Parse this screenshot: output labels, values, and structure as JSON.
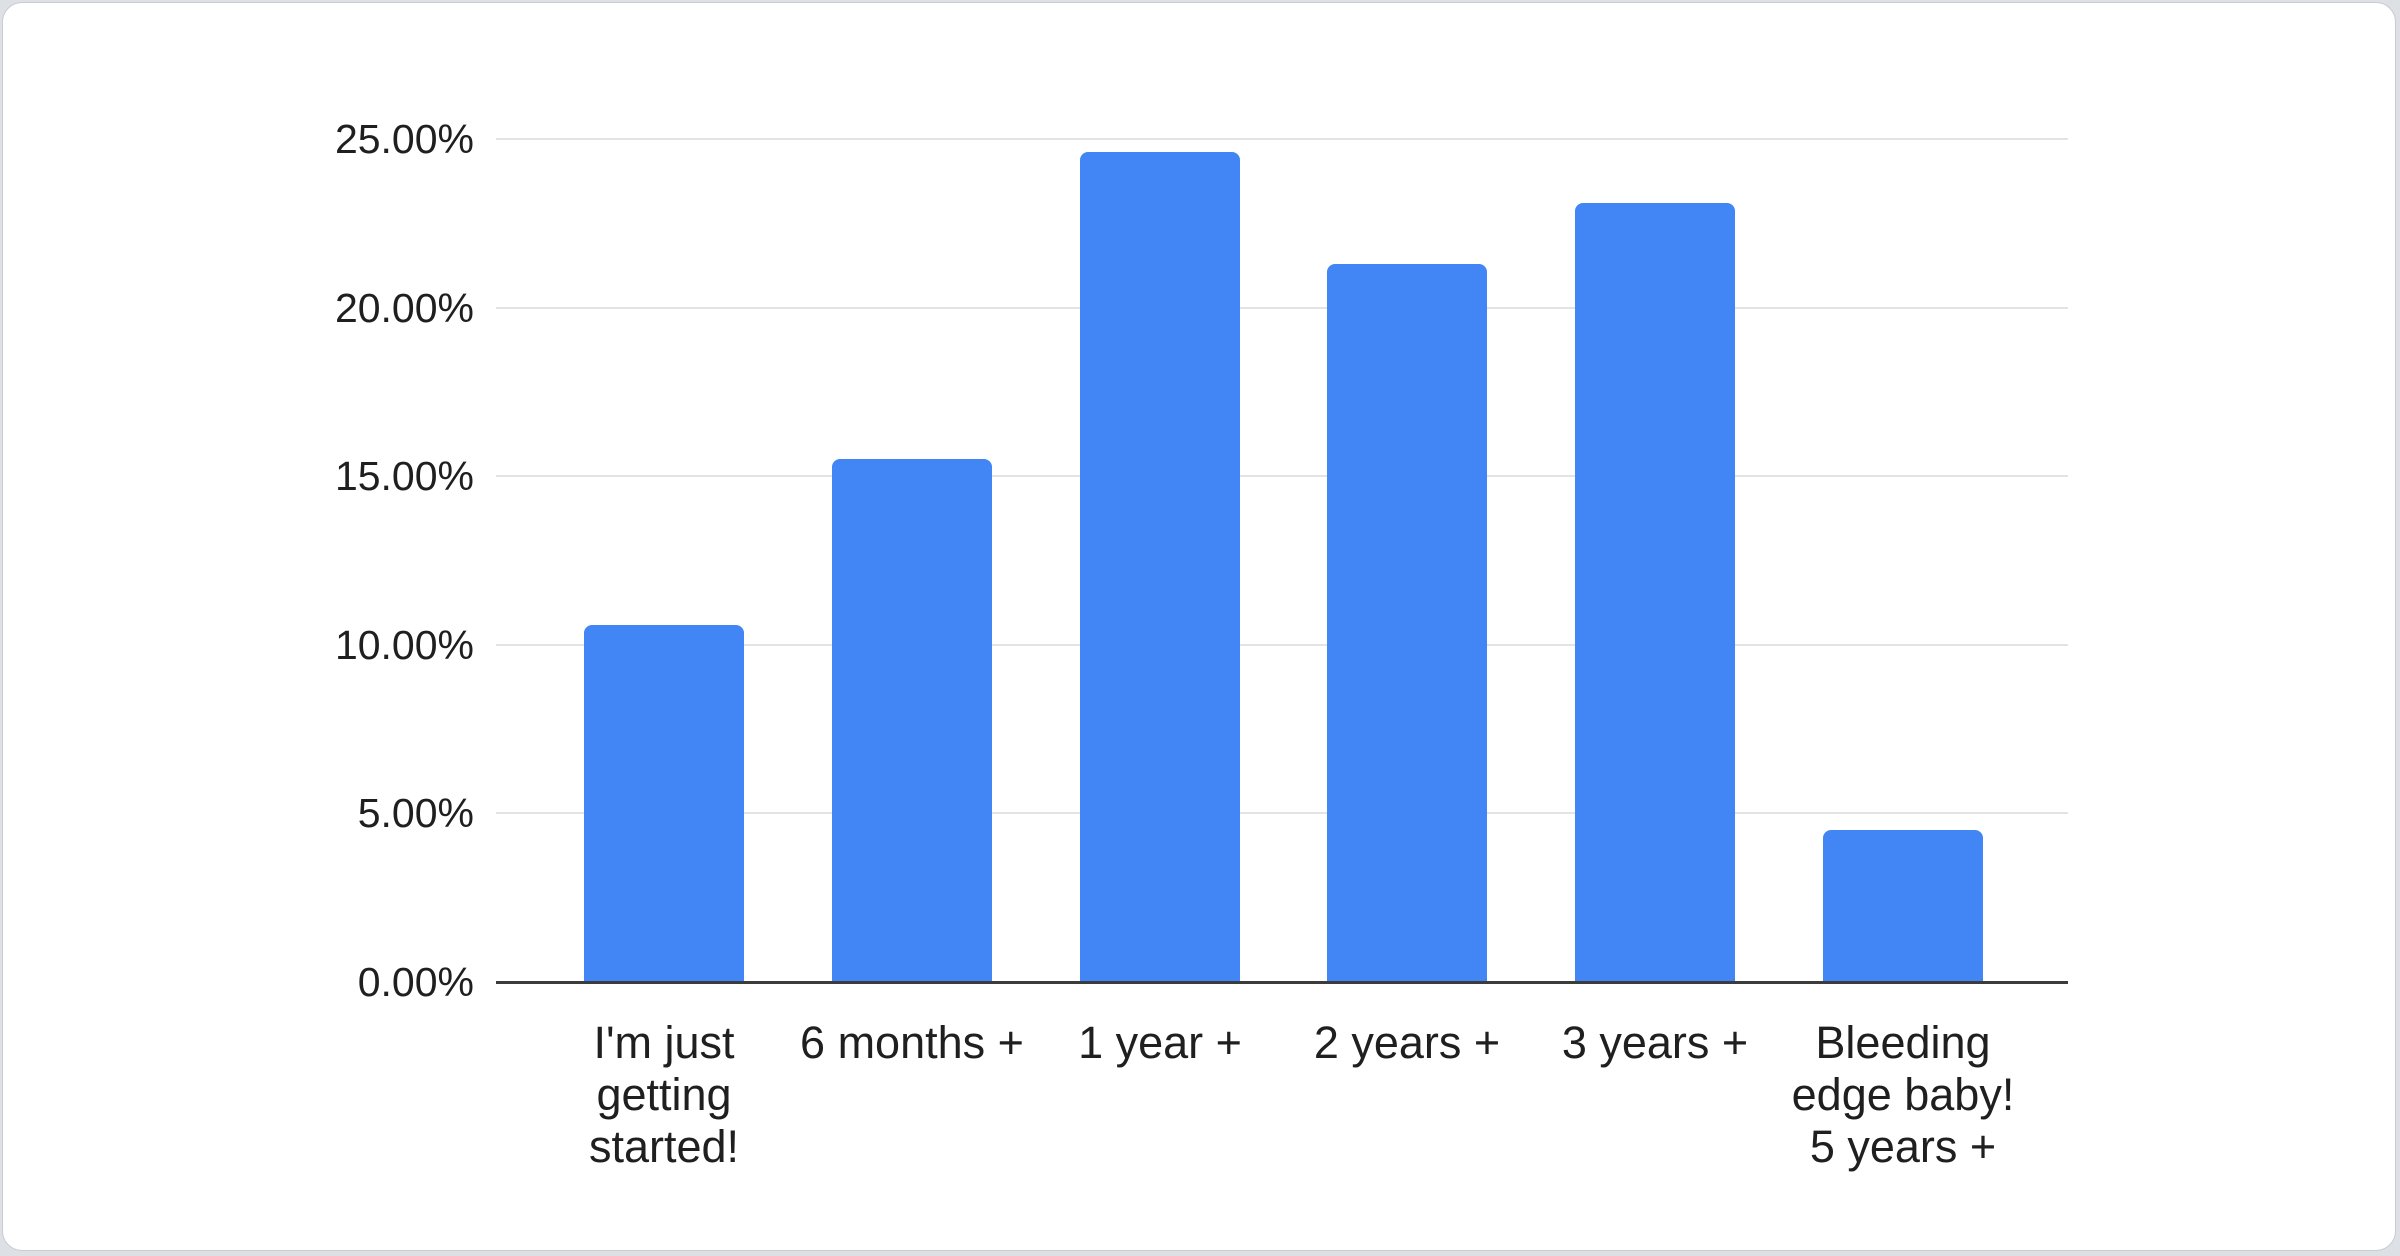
{
  "page": {
    "background_color": "#dde0e4",
    "card_background_color": "#ffffff",
    "card_border_color": "#c8ccd2"
  },
  "chart_data": {
    "type": "bar",
    "title": "",
    "xlabel": "",
    "ylabel": "",
    "categories": [
      "I'm just getting started!",
      "6 months +",
      "1 year +",
      "2 years +",
      "3 years +",
      "Bleeding edge baby! 5 years +"
    ],
    "category_lines": [
      [
        "I'm just",
        "getting",
        "started!"
      ],
      [
        "6 months +"
      ],
      [
        "1 year +"
      ],
      [
        "2 years +"
      ],
      [
        "3 years +"
      ],
      [
        "Bleeding",
        "edge baby!",
        "5 years +"
      ]
    ],
    "values": [
      10.6,
      15.5,
      24.6,
      21.3,
      23.1,
      4.5
    ],
    "value_unit": "%",
    "ylim": [
      0,
      25
    ],
    "ytick_step": 5,
    "ytick_labels": [
      "0.00%",
      "5.00%",
      "10.00%",
      "15.00%",
      "20.00%",
      "25.00%"
    ],
    "grid": true,
    "legend": "none",
    "colors": {
      "bar": "#4285f4",
      "axis_line": "#3c3c3c",
      "gridline": "#e3e3e3",
      "label": "#1f1f1f"
    }
  }
}
